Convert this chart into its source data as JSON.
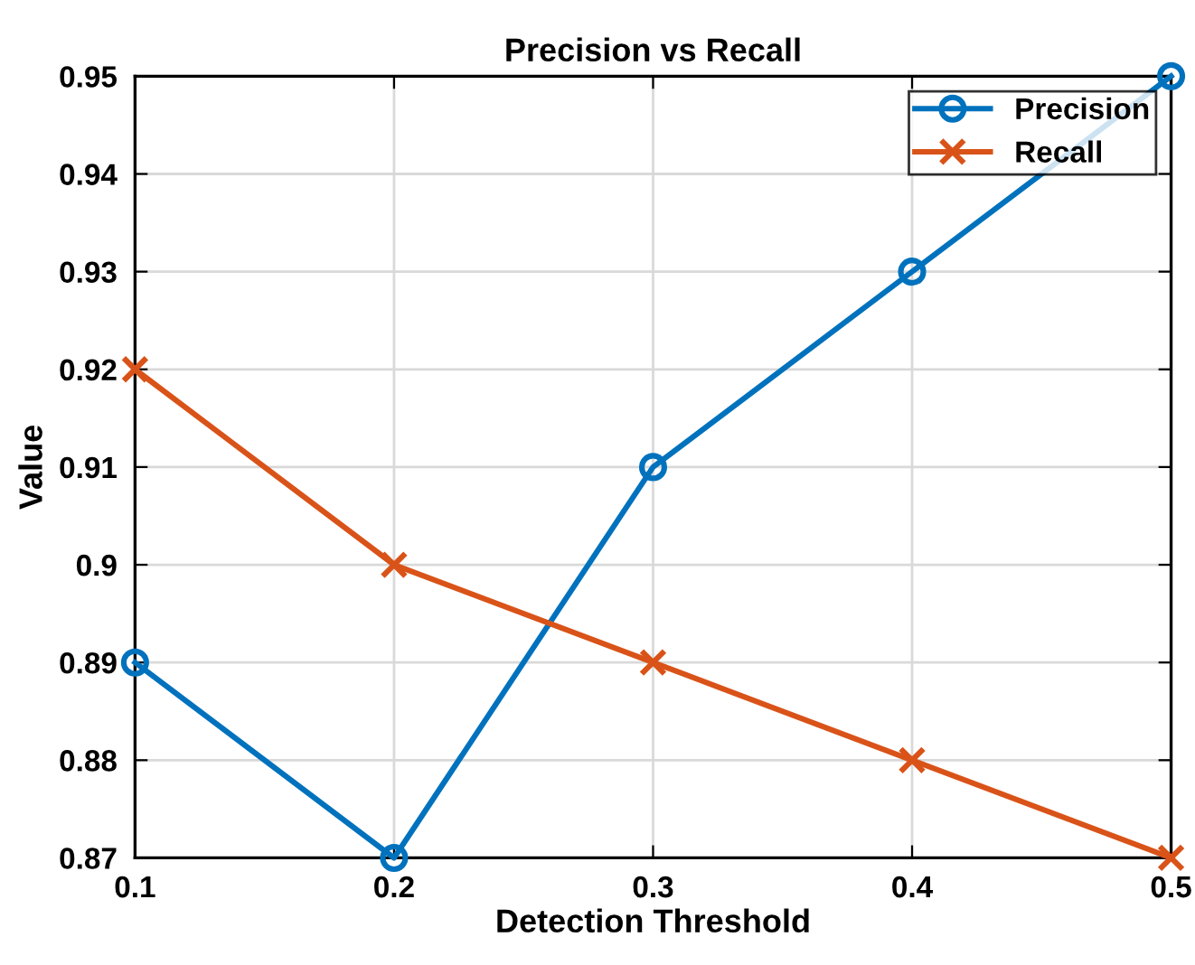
{
  "chart_data": {
    "type": "line",
    "title": "Precision vs Recall",
    "xlabel": "Detection Threshold",
    "ylabel": "Value",
    "x": [
      0.1,
      0.2,
      0.3,
      0.4,
      0.5
    ],
    "series": [
      {
        "name": "Precision",
        "color": "#0072bd",
        "marker": "circle",
        "values": [
          0.89,
          0.87,
          0.91,
          0.93,
          0.95
        ]
      },
      {
        "name": "Recall",
        "color": "#d95319",
        "marker": "cross",
        "values": [
          0.92,
          0.9,
          0.89,
          0.88,
          0.87
        ]
      }
    ],
    "xlim": [
      0.1,
      0.5
    ],
    "xticks": [
      0.1,
      0.2,
      0.3,
      0.4,
      0.5
    ],
    "ylim": [
      0.87,
      0.95
    ],
    "yticks": [
      0.87,
      0.88,
      0.89,
      0.9,
      0.91,
      0.92,
      0.93,
      0.94,
      0.95
    ],
    "grid": true,
    "legend": "top right",
    "line_style": "solid"
  }
}
